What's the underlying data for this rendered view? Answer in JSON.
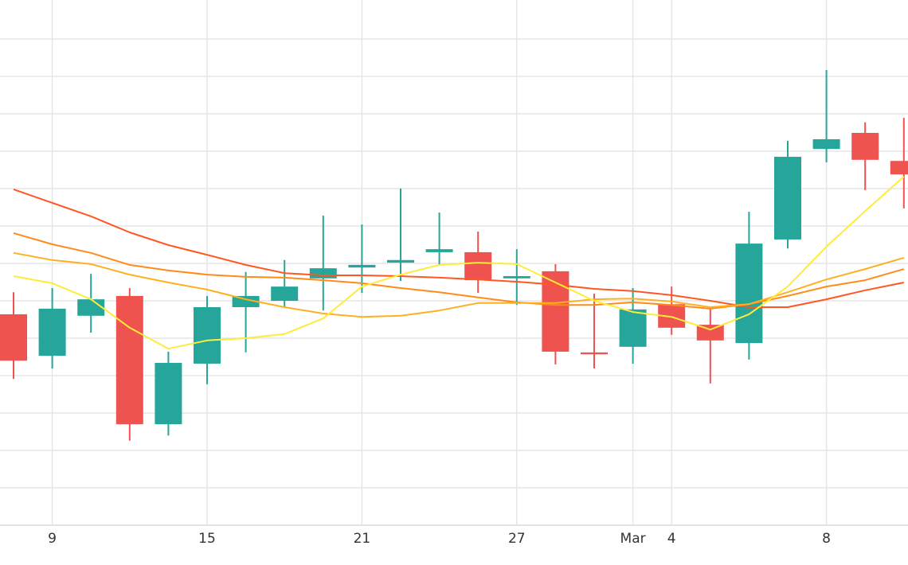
{
  "chart_data": {
    "type": "candlestick",
    "categories": [
      null,
      "9",
      null,
      null,
      null,
      "15",
      null,
      null,
      null,
      "21",
      null,
      null,
      null,
      "27",
      null,
      null,
      "Mar",
      "4",
      null,
      null,
      null,
      "8",
      null,
      null
    ],
    "open": [
      5.64,
      4.53,
      5.6,
      6.13,
      2.7,
      4.32,
      5.83,
      6.0,
      6.6,
      6.89,
      7.02,
      7.3,
      7.3,
      6.6,
      6.79,
      4.62,
      4.77,
      5.91,
      5.36,
      4.87,
      7.64,
      10.06,
      10.49,
      9.74
    ],
    "high": [
      6.23,
      6.34,
      6.72,
      6.34,
      4.64,
      6.13,
      6.77,
      7.09,
      8.28,
      8.04,
      9.0,
      8.36,
      7.85,
      7.38,
      6.98,
      6.19,
      6.34,
      6.38,
      5.79,
      8.38,
      10.28,
      12.17,
      10.77,
      10.89
    ],
    "low": [
      3.91,
      4.19,
      5.15,
      2.26,
      2.4,
      3.77,
      4.62,
      5.81,
      5.74,
      6.21,
      6.53,
      6.96,
      6.21,
      5.89,
      4.3,
      4.19,
      4.32,
      5.09,
      3.79,
      4.43,
      7.4,
      9.7,
      8.96,
      8.47
    ],
    "close": [
      4.4,
      5.79,
      6.04,
      2.7,
      4.34,
      5.83,
      6.13,
      6.38,
      6.87,
      6.96,
      7.09,
      7.38,
      6.55,
      6.66,
      4.64,
      4.57,
      5.77,
      5.28,
      4.94,
      7.53,
      9.85,
      10.32,
      9.77,
      9.38
    ],
    "up_color": "#26a69a",
    "down_color": "#ef5350",
    "series": [
      {
        "color": "#ff5722",
        "values": [
          8.98,
          8.62,
          8.26,
          7.83,
          7.49,
          7.23,
          6.96,
          6.74,
          6.68,
          6.68,
          6.66,
          6.62,
          6.57,
          6.51,
          6.43,
          6.32,
          6.26,
          6.15,
          6.0,
          5.83,
          5.83,
          6.04,
          6.28,
          6.49
        ]
      },
      {
        "color": "#ff8c1a",
        "values": [
          7.81,
          7.51,
          7.28,
          6.96,
          6.81,
          6.7,
          6.64,
          6.62,
          6.55,
          6.47,
          6.34,
          6.23,
          6.09,
          5.96,
          5.89,
          5.89,
          5.96,
          5.89,
          5.79,
          5.91,
          6.13,
          6.38,
          6.55,
          6.85
        ]
      },
      {
        "color": "#ffb020",
        "values": [
          7.28,
          7.09,
          6.98,
          6.7,
          6.49,
          6.3,
          6.04,
          5.83,
          5.66,
          5.57,
          5.6,
          5.74,
          5.94,
          5.94,
          5.94,
          6.04,
          6.06,
          5.98,
          5.83,
          5.91,
          6.23,
          6.57,
          6.85,
          7.15
        ]
      },
      {
        "color": "#ffeb3b",
        "values": [
          6.66,
          6.47,
          6.04,
          5.28,
          4.72,
          4.94,
          5.0,
          5.11,
          5.53,
          6.38,
          6.7,
          6.96,
          7.02,
          6.98,
          6.49,
          6.0,
          5.7,
          5.57,
          5.23,
          5.64,
          6.38,
          7.45,
          8.4,
          9.32
        ]
      }
    ],
    "ylim": [
      0,
      14
    ],
    "yticks": [
      0,
      1,
      2,
      3,
      4,
      5,
      6,
      7,
      8,
      9,
      10,
      11,
      12,
      13
    ],
    "grid": true
  }
}
